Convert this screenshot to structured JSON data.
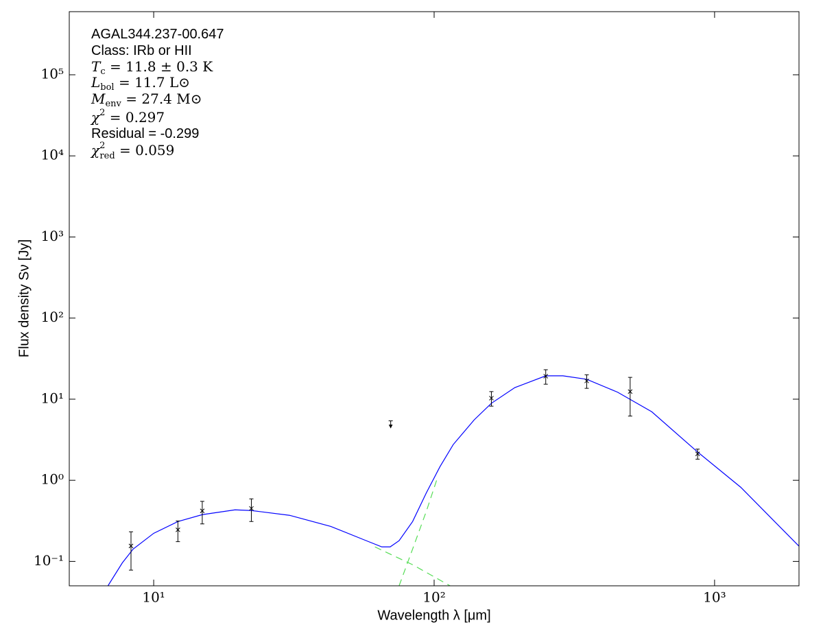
{
  "chart_data": {
    "type": "sed",
    "xlabel": "Wavelength λ [μm]",
    "ylabel": "Flux density Sν [Jy]",
    "xscale": "log",
    "yscale": "log",
    "xlim": [
      5,
      2000
    ],
    "ylim": [
      0.05,
      600000
    ],
    "xticks": [
      {
        "value": 10,
        "label": "10¹"
      },
      {
        "value": 100,
        "label": "10²"
      },
      {
        "value": 1000,
        "label": "10³"
      }
    ],
    "yticks": [
      {
        "value": 0.1,
        "label": "10⁻¹"
      },
      {
        "value": 1,
        "label": "10⁰"
      },
      {
        "value": 10,
        "label": "10¹"
      },
      {
        "value": 100,
        "label": "10²"
      },
      {
        "value": 1000,
        "label": "10³"
      },
      {
        "value": 10000,
        "label": "10⁴"
      },
      {
        "value": 100000,
        "label": "10⁵"
      }
    ],
    "annotations": [
      {
        "font": "sans",
        "text": "AGAL344.237-00.647"
      },
      {
        "font": "sans",
        "text": "Class: IRb or HII"
      },
      {
        "font": "serif",
        "symbol": "T",
        "sub": "c",
        "text": " = 11.8 ± 0.3 K"
      },
      {
        "font": "serif",
        "symbol": "L",
        "sub": "bol",
        "text": " = 11.7 L⊙"
      },
      {
        "font": "serif",
        "symbol": "M",
        "sub": "env",
        "text": " = 27.4 M⊙"
      },
      {
        "font": "serif",
        "symbol": "χ",
        "sup": "2",
        "text": " = 0.297"
      },
      {
        "font": "sans",
        "text": "Residual = -0.299"
      },
      {
        "font": "serif",
        "symbol": "χ",
        "sup": "2",
        "sub": "red",
        "text": " = 0.059"
      }
    ],
    "series": [
      {
        "style": "line",
        "color": "#55dd55",
        "dash": true,
        "x": [
          61.5,
          83.8,
          114
        ],
        "values": [
          0.151,
          0.091,
          0.05
        ]
      },
      {
        "style": "line",
        "color": "#55dd55",
        "dash": true,
        "x": [
          75,
          83.8,
          93.8,
          103
        ],
        "values": [
          0.05,
          0.142,
          0.415,
          1.1
        ]
      },
      {
        "style": "line",
        "color": "#0000ff",
        "dash": false,
        "x": [
          6.87,
          7.73,
          8.45,
          10,
          12.2,
          14.9,
          19.5,
          22.3,
          30.5,
          42.8,
          56.6,
          65.1,
          69.7,
          75,
          83.8,
          93.8,
          105,
          117,
          139,
          160,
          194,
          250,
          288,
          350,
          451,
          597,
          865,
          1240,
          1637,
          2000
        ],
        "values": [
          0.05,
          0.096,
          0.142,
          0.222,
          0.31,
          0.377,
          0.432,
          0.424,
          0.37,
          0.27,
          0.183,
          0.151,
          0.151,
          0.18,
          0.31,
          0.7,
          1.48,
          2.76,
          5.57,
          8.9,
          13.9,
          19.4,
          19.4,
          17.6,
          12.2,
          7.0,
          2.27,
          0.82,
          0.31,
          0.154
        ]
      },
      {
        "style": "errorbar",
        "color": "#000000",
        "x": [
          8.3,
          12.2,
          14.9,
          22.3,
          160,
          250,
          350,
          500,
          870
        ],
        "values": [
          0.155,
          0.245,
          0.42,
          0.45,
          10.3,
          19.2,
          16.8,
          12.4,
          2.12
        ],
        "errors": [
          0.077,
          0.07,
          0.13,
          0.14,
          2.1,
          3.9,
          3.2,
          6.2,
          0.3
        ]
      },
      {
        "style": "upper-limit",
        "color": "#000000",
        "x": [
          70
        ],
        "values": [
          5.0
        ]
      }
    ]
  }
}
